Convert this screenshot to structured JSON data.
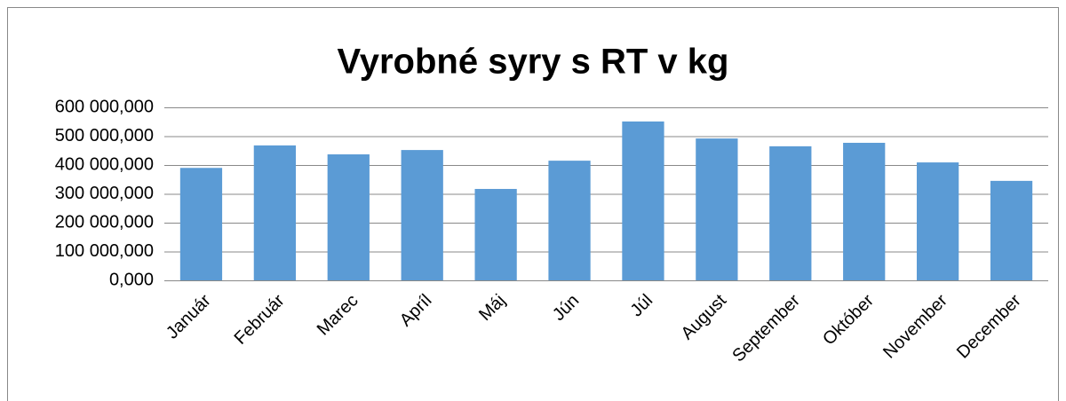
{
  "chart_data": {
    "type": "bar",
    "title": "Vyrobné syry s RT v kg",
    "categories": [
      "Január",
      "Február",
      "Marec",
      "Apríl",
      "Máj",
      "Jún",
      "Júl",
      "August",
      "September",
      "Október",
      "November",
      "December"
    ],
    "values": [
      390000,
      468000,
      437000,
      452000,
      317000,
      415000,
      551000,
      492000,
      465000,
      477000,
      409000,
      345000
    ],
    "color": "#5b9bd5",
    "ylim": [
      0,
      600000
    ],
    "yticks": [
      {
        "value": 0,
        "label": "0,000"
      },
      {
        "value": 100000,
        "label": "100 000,000"
      },
      {
        "value": 200000,
        "label": "200 000,000"
      },
      {
        "value": 300000,
        "label": "300 000,000"
      },
      {
        "value": 400000,
        "label": "400 000,000"
      },
      {
        "value": 500000,
        "label": "500 000,000"
      },
      {
        "value": 600000,
        "label": "600 000,000"
      }
    ],
    "grid": true
  }
}
